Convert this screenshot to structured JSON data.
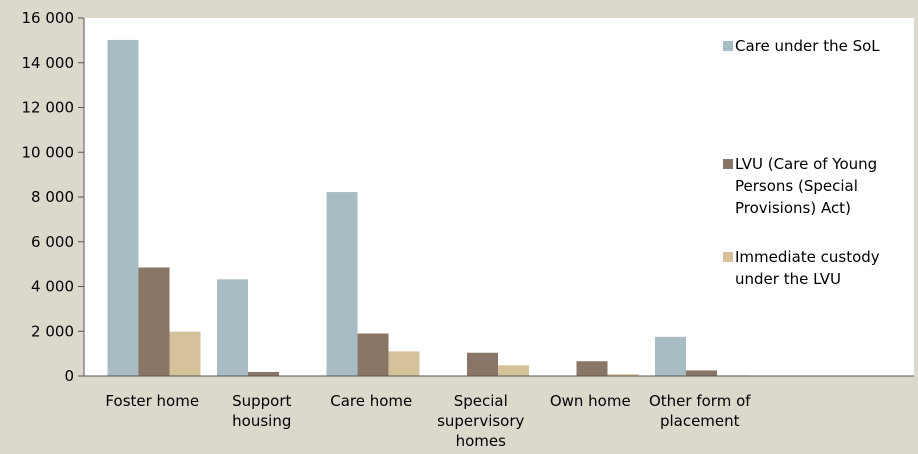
{
  "chart_data": {
    "type": "bar",
    "title": "",
    "xlabel": "",
    "ylabel": "",
    "ylim": [
      0,
      16000
    ],
    "yticks": [
      0,
      2000,
      4000,
      6000,
      8000,
      10000,
      12000,
      14000,
      16000
    ],
    "ytick_labels": [
      "0",
      "2 000",
      "4 000",
      "6 000",
      "8 000",
      "10 000",
      "12 000",
      "14 000",
      "16 000"
    ],
    "grid": false,
    "legend_position": "right",
    "categories": [
      [
        "Foster home"
      ],
      [
        "Support",
        "housing"
      ],
      [
        "Care home"
      ],
      [
        "Special",
        "supervisory",
        "homes"
      ],
      [
        "Own home"
      ],
      [
        "Other form of",
        "placement"
      ]
    ],
    "series": [
      {
        "name": [
          "Care under the SoL"
        ],
        "color": "#a8bcc4",
        "values": [
          15020,
          4320,
          8220,
          0,
          0,
          1750
        ]
      },
      {
        "name": [
          "LVU (Care of Young",
          "Persons (Special",
          "Provisions) Act)"
        ],
        "color": "#8a7667",
        "values": [
          4850,
          180,
          1900,
          1040,
          660,
          250
        ]
      },
      {
        "name": [
          "Immediate custody",
          "under the LVU"
        ],
        "color": "#d5c29b",
        "values": [
          1980,
          0,
          1100,
          480,
          80,
          30
        ]
      }
    ]
  }
}
